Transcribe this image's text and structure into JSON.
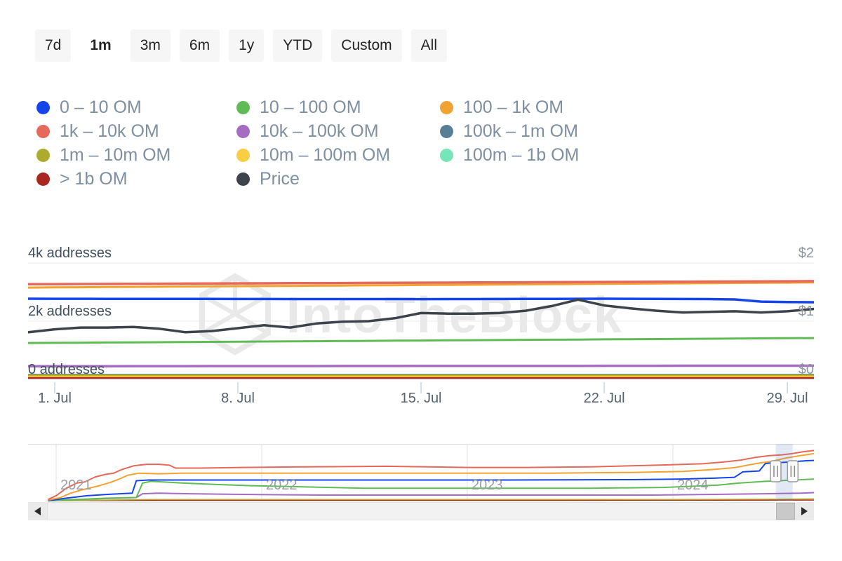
{
  "toolbar": {
    "ranges": [
      {
        "label": "7d",
        "active": false
      },
      {
        "label": "1m",
        "active": true
      },
      {
        "label": "3m",
        "active": false
      },
      {
        "label": "6m",
        "active": false
      },
      {
        "label": "1y",
        "active": false
      },
      {
        "label": "YTD",
        "active": false
      },
      {
        "label": "Custom",
        "active": false
      },
      {
        "label": "All",
        "active": false
      }
    ]
  },
  "legend": {
    "items": [
      {
        "label": "0 – 10 OM",
        "color": "#1545e8"
      },
      {
        "label": "10 – 100 OM",
        "color": "#5fbc55"
      },
      {
        "label": "100 – 1k OM",
        "color": "#f2a231"
      },
      {
        "label": "1k – 10k OM",
        "color": "#e4695a"
      },
      {
        "label": "10k – 100k OM",
        "color": "#a56cc1"
      },
      {
        "label": "100k – 1m OM",
        "color": "#587e96"
      },
      {
        "label": "1m – 10m OM",
        "color": "#adab2d"
      },
      {
        "label": "10m – 100m OM",
        "color": "#f9ce44"
      },
      {
        "label": "100m – 1b OM",
        "color": "#77e5ba"
      },
      {
        "label": "> 1b OM",
        "color": "#a8271f"
      },
      {
        "label": "Price",
        "color": "#3d434b"
      }
    ]
  },
  "watermark": {
    "text": "IntoTheBlock"
  },
  "chart_data": {
    "type": "line",
    "main": {
      "x_unit": "daily, Jun 30 – Jul 30 2024",
      "left_axis": {
        "labels": [
          "4k addresses",
          "2k addresses",
          "0 addresses"
        ],
        "range": [
          0,
          4000
        ],
        "unit": "addresses"
      },
      "right_axis": {
        "labels": [
          "$2",
          "$1",
          "$0"
        ],
        "range": [
          0,
          2
        ],
        "unit": "USD"
      },
      "x_ticks": [
        {
          "label": "1. Jul",
          "day": 1
        },
        {
          "label": "8. Jul",
          "day": 8
        },
        {
          "label": "15. Jul",
          "day": 15
        },
        {
          "label": "22. Jul",
          "day": 22
        },
        {
          "label": "29. Jul",
          "day": 29
        }
      ],
      "grid": true,
      "series": [
        {
          "name": "100k – 1m OM",
          "color": "#587e96",
          "width": 2,
          "axis": "addresses",
          "values": 168
        },
        {
          "name": "100m – 1b OM",
          "color": "#77e5ba",
          "width": 2,
          "axis": "addresses",
          "values": 118
        },
        {
          "name": "1m – 10m OM",
          "color": "#adab2d",
          "width": 2.5,
          "axis": "addresses",
          "values": 145
        },
        {
          "name": "10m – 100m OM",
          "color": "#f9ce44",
          "width": 2.5,
          "axis": "addresses",
          "values": 97
        },
        {
          "name": "> 1b OM",
          "color": "#a8271f",
          "width": 2.5,
          "axis": "addresses",
          "values": 47
        },
        {
          "name": "10k – 100k OM",
          "color": "#a56cc1",
          "width": 3.5,
          "axis": "addresses",
          "values": [
            452,
            453,
            453,
            454,
            455,
            455,
            456,
            457,
            457,
            458,
            459,
            459,
            460,
            461,
            461,
            462,
            463,
            463,
            464,
            465,
            465,
            466,
            467,
            467,
            468,
            469,
            469,
            470,
            471,
            471,
            472
          ]
        },
        {
          "name": "10 – 100 OM",
          "color": "#5fbc55",
          "width": 3,
          "axis": "addresses",
          "values": [
            1250,
            1256,
            1261,
            1267,
            1273,
            1278,
            1284,
            1290,
            1295,
            1301,
            1307,
            1312,
            1318,
            1324,
            1329,
            1335,
            1341,
            1346,
            1352,
            1358,
            1363,
            1369,
            1375,
            1380,
            1386,
            1392,
            1397,
            1403,
            1409,
            1414,
            1420
          ]
        },
        {
          "name": "100 – 1k OM",
          "color": "#f2a231",
          "width": 3,
          "axis": "addresses",
          "values": [
            3155,
            3161,
            3167,
            3173,
            3178,
            3184,
            3190,
            3196,
            3202,
            3208,
            3213,
            3219,
            3225,
            3231,
            3237,
            3243,
            3248,
            3254,
            3260,
            3266,
            3272,
            3278,
            3283,
            3289,
            3295,
            3301,
            3307,
            3313,
            3318,
            3324,
            3330
          ]
        },
        {
          "name": "1k – 10k OM",
          "color": "#e4695a",
          "width": 3.5,
          "axis": "addresses",
          "values": [
            3270,
            3273,
            3277,
            3280,
            3284,
            3287,
            3291,
            3294,
            3298,
            3301,
            3305,
            3308,
            3312,
            3315,
            3319,
            3322,
            3326,
            3329,
            3333,
            3336,
            3340,
            3343,
            3347,
            3350,
            3354,
            3357,
            3361,
            3364,
            3368,
            3371,
            3375
          ]
        },
        {
          "name": "0 – 10 OM",
          "color": "#1545e8",
          "width": 3.5,
          "axis": "addresses",
          "values": [
            2770,
            2769,
            2768,
            2767,
            2766,
            2765,
            2764,
            2763,
            2762,
            2761,
            2760,
            2759,
            2759,
            2758,
            2758,
            2757,
            2758,
            2759,
            2761,
            2763,
            2766,
            2769,
            2770,
            2768,
            2765,
            2762,
            2759,
            2748,
            2672,
            2656,
            2650
          ]
        },
        {
          "name": "Price",
          "color": "#3d434b",
          "width": 3.5,
          "axis": "price",
          "values": [
            0.81,
            0.86,
            0.89,
            0.89,
            0.9,
            0.87,
            0.81,
            0.83,
            0.88,
            0.93,
            0.89,
            0.96,
            0.99,
            1.0,
            1.05,
            1.14,
            1.13,
            1.13,
            1.14,
            1.18,
            1.26,
            1.37,
            1.27,
            1.22,
            1.18,
            1.15,
            1.16,
            1.17,
            1.15,
            1.17,
            1.21
          ]
        }
      ]
    },
    "navigator": {
      "years": [
        2021,
        2022,
        2023,
        2024
      ],
      "y_max": 3500,
      "selected_range": [
        2024.5,
        2024.583
      ],
      "series": [
        {
          "name": "> 1b OM",
          "color": "#a8271f",
          "width": 1.5,
          "points": [
            [
              2020.96,
              0
            ],
            [
              2021.5,
              25
            ],
            [
              2022.5,
              25
            ],
            [
              2023.5,
              25
            ],
            [
              2024.77,
              40
            ]
          ]
        },
        {
          "name": "1m – 10m OM",
          "color": "#adab2d",
          "width": 1.5,
          "points": [
            [
              2020.96,
              0
            ],
            [
              2021.2,
              30
            ],
            [
              2021.45,
              80
            ],
            [
              2022,
              80
            ],
            [
              2023,
              80
            ],
            [
              2024,
              85
            ],
            [
              2024.5,
              100
            ],
            [
              2024.77,
              130
            ]
          ]
        },
        {
          "name": "10k – 100k OM",
          "color": "#a56cc1",
          "width": 2,
          "points": [
            [
              2020.96,
              0
            ],
            [
              2021.1,
              80
            ],
            [
              2021.3,
              170
            ],
            [
              2021.39,
              210
            ],
            [
              2021.42,
              460
            ],
            [
              2021.5,
              500
            ],
            [
              2021.65,
              460
            ],
            [
              2021.9,
              420
            ],
            [
              2022.3,
              375
            ],
            [
              2023,
              375
            ],
            [
              2023.9,
              375
            ],
            [
              2024.2,
              420
            ],
            [
              2024.45,
              460
            ],
            [
              2024.62,
              500
            ],
            [
              2024.77,
              580
            ]
          ]
        },
        {
          "name": "10 – 100 OM",
          "color": "#5fbc55",
          "width": 2,
          "points": [
            [
              2020.96,
              0
            ],
            [
              2021.1,
              80
            ],
            [
              2021.25,
              170
            ],
            [
              2021.39,
              210
            ],
            [
              2021.42,
              1170
            ],
            [
              2021.46,
              1290
            ],
            [
              2021.52,
              1250
            ],
            [
              2021.62,
              1170
            ],
            [
              2021.78,
              1080
            ],
            [
              2021.95,
              1000
            ],
            [
              2022.2,
              920
            ],
            [
              2022.5,
              830
            ],
            [
              2023,
              830
            ],
            [
              2023.6,
              830
            ],
            [
              2023.95,
              880
            ],
            [
              2024.1,
              960
            ],
            [
              2024.22,
              1040
            ],
            [
              2024.32,
              1170
            ],
            [
              2024.45,
              1290
            ],
            [
              2024.6,
              1380
            ],
            [
              2024.7,
              1440
            ],
            [
              2024.77,
              1460
            ]
          ]
        },
        {
          "name": "0 – 10 OM",
          "color": "#1545e8",
          "width": 2,
          "points": [
            [
              2020.96,
              0
            ],
            [
              2021.05,
              170
            ],
            [
              2021.15,
              330
            ],
            [
              2021.25,
              420
            ],
            [
              2021.37,
              500
            ],
            [
              2021.39,
              1330
            ],
            [
              2021.45,
              1375
            ],
            [
              2022,
              1375
            ],
            [
              2022.6,
              1375
            ],
            [
              2023.2,
              1375
            ],
            [
              2023.8,
              1400
            ],
            [
              2024.05,
              1440
            ],
            [
              2024.2,
              1500
            ],
            [
              2024.3,
              1560
            ],
            [
              2024.34,
              1920
            ],
            [
              2024.42,
              1980
            ],
            [
              2024.45,
              2480
            ],
            [
              2024.55,
              2560
            ],
            [
              2024.65,
              2660
            ],
            [
              2024.77,
              2710
            ]
          ]
        },
        {
          "name": "100 – 1k OM",
          "color": "#f2a231",
          "width": 2,
          "points": [
            [
              2020.96,
              40
            ],
            [
              2021.02,
              200
            ],
            [
              2021.07,
              500
            ],
            [
              2021.12,
              700
            ],
            [
              2021.16,
              830
            ],
            [
              2021.21,
              1000
            ],
            [
              2021.26,
              1200
            ],
            [
              2021.3,
              1400
            ],
            [
              2021.35,
              1700
            ],
            [
              2021.4,
              1830
            ],
            [
              2021.5,
              1790
            ],
            [
              2021.6,
              1830
            ],
            [
              2022,
              1830
            ],
            [
              2022.5,
              1830
            ],
            [
              2023,
              1830
            ],
            [
              2023.4,
              1830
            ],
            [
              2023.8,
              1880
            ],
            [
              2024.05,
              1950
            ],
            [
              2024.2,
              2080
            ],
            [
              2024.3,
              2200
            ],
            [
              2024.4,
              2460
            ],
            [
              2024.48,
              2620
            ],
            [
              2024.55,
              2840
            ],
            [
              2024.62,
              3000
            ],
            [
              2024.68,
              3120
            ],
            [
              2024.77,
              3250
            ]
          ]
        },
        {
          "name": "1k – 10k OM",
          "color": "#e4695a",
          "width": 2,
          "points": [
            [
              2020.96,
              80
            ],
            [
              2021.0,
              330
            ],
            [
              2021.05,
              830
            ],
            [
              2021.1,
              1170
            ],
            [
              2021.14,
              1250
            ],
            [
              2021.19,
              1580
            ],
            [
              2021.24,
              1750
            ],
            [
              2021.28,
              1830
            ],
            [
              2021.32,
              2080
            ],
            [
              2021.38,
              2330
            ],
            [
              2021.44,
              2420
            ],
            [
              2021.5,
              2420
            ],
            [
              2021.55,
              2370
            ],
            [
              2021.58,
              2170
            ],
            [
              2021.7,
              2170
            ],
            [
              2021.9,
              2210
            ],
            [
              2022.2,
              2250
            ],
            [
              2022.6,
              2290
            ],
            [
              2023,
              2210
            ],
            [
              2023.3,
              2210
            ],
            [
              2023.6,
              2250
            ],
            [
              2023.95,
              2375
            ],
            [
              2024.15,
              2460
            ],
            [
              2024.25,
              2580
            ],
            [
              2024.33,
              2700
            ],
            [
              2024.4,
              2880
            ],
            [
              2024.47,
              3000
            ],
            [
              2024.53,
              3050
            ],
            [
              2024.58,
              3130
            ],
            [
              2024.63,
              3250
            ],
            [
              2024.68,
              3330
            ],
            [
              2024.77,
              3420
            ]
          ]
        }
      ]
    }
  },
  "icons": {
    "scroll_left": "left-triangle",
    "scroll_right": "right-triangle",
    "navigator_handle": "double-bar"
  },
  "colors": {
    "grid_line": "#e9e9e9",
    "tick_mark": "#c9d4e4",
    "navigator_mask": "rgba(102,133,194,0.18)",
    "watermark": "#e9e9e9",
    "background": "#ffffff"
  }
}
